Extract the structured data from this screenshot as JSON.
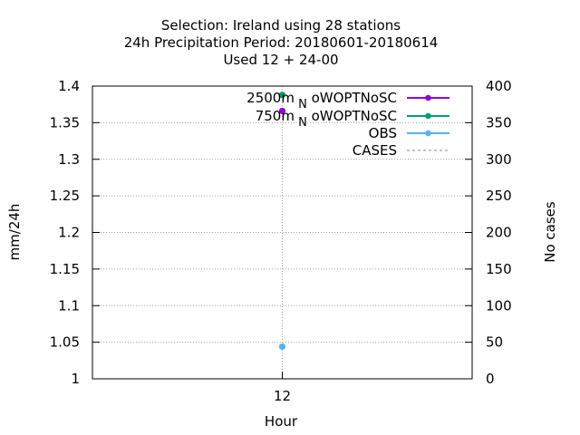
{
  "chart_data": {
    "type": "scatter",
    "title_lines": [
      "Selection: Ireland using    28 stations",
      "24h Precipitation   Period: 20180601-20180614",
      "Used  12 + 24-00"
    ],
    "xlabel": "Hour",
    "ylabel": "mm/24h",
    "y2label": "No cases",
    "x_categories": [
      "12"
    ],
    "ylim": [
      1.0,
      1.4
    ],
    "y_ticks": [
      "1",
      "1.05",
      "1.1",
      "1.15",
      "1.2",
      "1.25",
      "1.3",
      "1.35",
      "1.4"
    ],
    "y2lim": [
      0,
      400
    ],
    "y2_ticks": [
      "0",
      "50",
      "100",
      "150",
      "200",
      "250",
      "300",
      "350",
      "400"
    ],
    "grid": true,
    "legend_position": "top-right",
    "series": [
      {
        "name": "2500m_N oWOPTNoSC",
        "name_main": "2500m",
        "name_sub": "N",
        "name_rest": "oWOPTNoSC",
        "color": "#9400d3",
        "axis": "y",
        "points": [
          {
            "x": "12",
            "y": 1.366
          }
        ]
      },
      {
        "name": "750m_N oWOPTNoSC",
        "name_main": "750m",
        "name_sub": "N",
        "name_rest": "oWOPTNoSC",
        "color": "#009e73",
        "axis": "y",
        "points": [
          {
            "x": "12",
            "y": 1.388
          }
        ]
      },
      {
        "name": "OBS",
        "color": "#56b4e9",
        "axis": "y",
        "points": [
          {
            "x": "12",
            "y": 1.044
          }
        ]
      },
      {
        "name": "CASES",
        "color": "#888888",
        "axis": "y2",
        "dashed": true,
        "points": []
      }
    ]
  }
}
